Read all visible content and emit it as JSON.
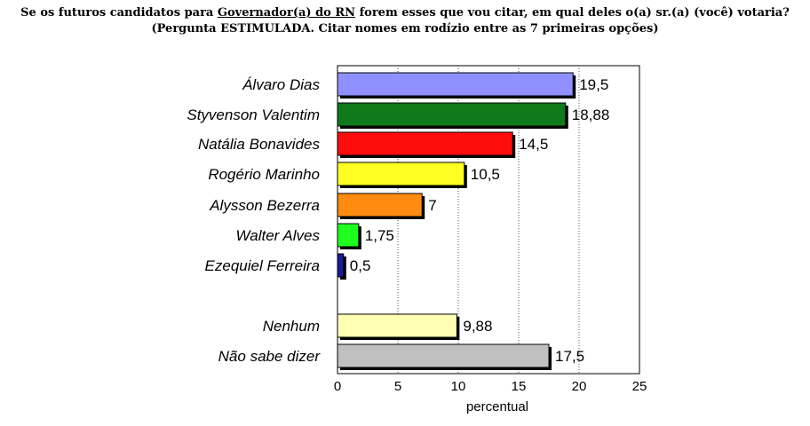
{
  "title": {
    "line1_pre": "Se os futuros candidatos para ",
    "line1_link": "Governador(a) do RN",
    "line1_post": " forem esses que vou citar, em qual deles o(a) sr.(a) (você) votaria?",
    "line2": "(Pergunta ESTIMULADA. Citar nomes em rodízio entre as 7 primeiras opções)"
  },
  "chart_data": {
    "type": "bar",
    "orientation": "horizontal",
    "categories": [
      "Álvaro Dias",
      "Styvenson Valentim",
      "Natália Bonavides",
      "Rogério Marinho",
      "Alysson Bezerra",
      "Walter Alves",
      "Ezequiel Ferreira",
      "Nenhum",
      "Não sabe dizer"
    ],
    "values": [
      19.5,
      18.88,
      14.5,
      10.5,
      7,
      1.75,
      0.5,
      9.88,
      17.5
    ],
    "value_labels": [
      "19,5",
      "18,88",
      "14,5",
      "10,5",
      "7",
      "1,75",
      "0,5",
      "9,88",
      "17,5"
    ],
    "colors": [
      "#8f8fff",
      "#0f7a1a",
      "#ff0d0d",
      "#ffff22",
      "#ff8c10",
      "#1fff1f",
      "#1a1a99",
      "#ffffb3",
      "#c0c0c0"
    ],
    "xlabel": "percentual",
    "ylabel": "",
    "xlim": [
      0,
      25
    ],
    "xticks": [
      0,
      5,
      10,
      15,
      20,
      25
    ],
    "grid": "vertical dotted",
    "legend": "none"
  }
}
